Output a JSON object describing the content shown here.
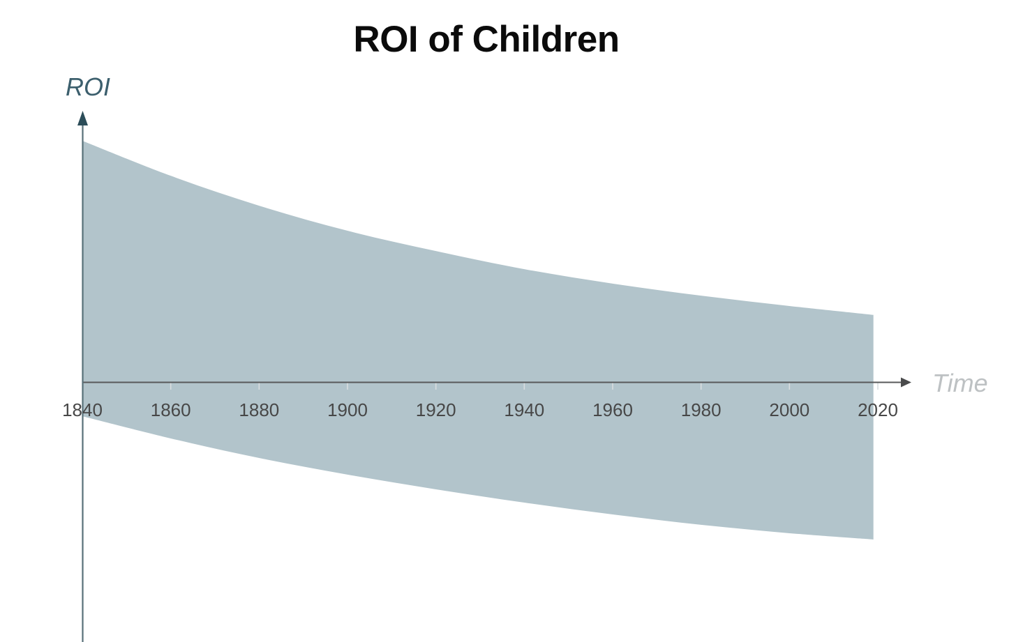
{
  "title": "ROI of Children",
  "x_axis": {
    "label": "Time",
    "ticks": [
      "1840",
      "1860",
      "1880",
      "1900",
      "1920",
      "1940",
      "1960",
      "1980",
      "2000",
      "2020"
    ]
  },
  "y_axis": {
    "label": "ROI"
  },
  "colors": {
    "band_fill": "#b2c4cb",
    "x_axis_line": "#58595a",
    "x_axis_arrow": "#4a4b4c",
    "y_axis_line": "#577078",
    "y_axis_arrow": "#2c4d59",
    "tick_mark": "#d8dddf",
    "tick_label": "#474747",
    "title_color": "#0b0b0b",
    "y_label_color": "#3c5f6d",
    "x_label_color": "#bdc1c3"
  },
  "chart_data": {
    "type": "area",
    "title": "ROI of Children",
    "xlabel": "Time",
    "ylabel": "ROI",
    "x_ticks": [
      1840,
      1860,
      1880,
      1900,
      1920,
      1940,
      1960,
      1980,
      2000,
      2020
    ],
    "y_axis_unlabeled": true,
    "units": "relative (upper bound at 1840 = 100, x-axis = 0)",
    "band": {
      "x": [
        1840,
        1860,
        1880,
        1900,
        1920,
        1940,
        1960,
        1980,
        2000,
        2019
      ],
      "upper": [
        100.0,
        85.5,
        73.1,
        62.7,
        54.3,
        46.8,
        40.8,
        35.8,
        31.5,
        27.8
      ],
      "lower": [
        -14.2,
        -23.4,
        -31.5,
        -38.4,
        -44.5,
        -50.0,
        -54.9,
        -59.2,
        -62.7,
        -65.3
      ]
    },
    "legend": false,
    "grid": false,
    "description": "Shaded band declining over time, starting mostly above the zero line in 1840 and drifting below it by 2020"
  }
}
